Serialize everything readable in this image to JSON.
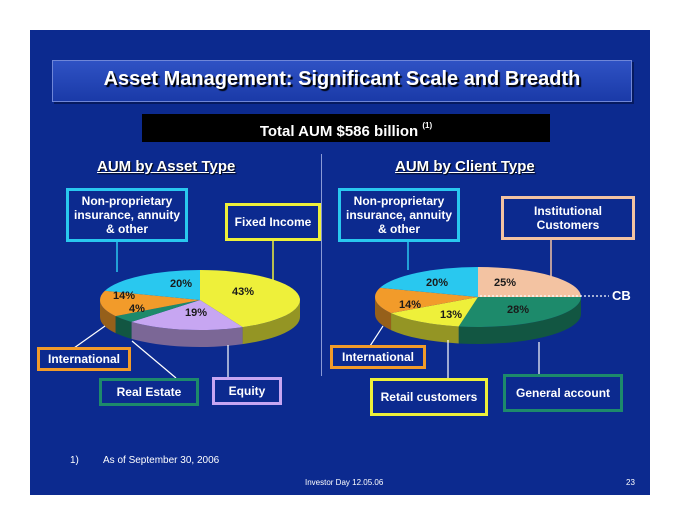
{
  "slide": {
    "title": "Asset Management: Significant Scale and Breadth",
    "total": "Total AUM $586 billion",
    "total_note": "(1)",
    "footnote_marker": "1)",
    "footnote_text": "As of September 30, 2006",
    "footer_center": "Investor Day 12.05.06",
    "page_number": "23"
  },
  "left": {
    "heading": "AUM by Asset Type",
    "labels": {
      "nonprop": "Non-proprietary insurance, annuity & other",
      "fixed": "Fixed Income",
      "international": "International",
      "real_estate": "Real Estate",
      "equity": "Equity"
    }
  },
  "right": {
    "heading": "AUM by Client Type",
    "labels": {
      "nonprop": "Non-proprietary insurance, annuity & other",
      "institutional": "Institutional Customers",
      "cb": "CB",
      "international": "International",
      "retail": "Retail customers",
      "general": "General account"
    }
  },
  "colors": {
    "background": "#0c2a8f",
    "cyan": "#29c8ef",
    "yellow": "#eef03a",
    "lavender": "#c7a6f2",
    "green": "#1d8a6b",
    "orange": "#f29b2a",
    "peach": "#f3c3a2"
  },
  "chart_data": [
    {
      "type": "pie",
      "title": "AUM by Asset Type",
      "slices": [
        {
          "label": "Fixed Income",
          "value": 43,
          "text": "43%",
          "color": "#eef03a"
        },
        {
          "label": "Equity",
          "value": 19,
          "text": "19%",
          "color": "#c7a6f2"
        },
        {
          "label": "Real Estate",
          "value": 4,
          "text": "4%",
          "color": "#1d8a6b"
        },
        {
          "label": "International",
          "value": 14,
          "text": "14%",
          "color": "#f29b2a"
        },
        {
          "label": "Non-proprietary insurance, annuity & other",
          "value": 20,
          "text": "20%",
          "color": "#29c8ef"
        }
      ]
    },
    {
      "type": "pie",
      "title": "AUM by Client Type",
      "slices": [
        {
          "label": "Institutional Customers",
          "value": 25,
          "text": "25%",
          "color": "#f3c3a2"
        },
        {
          "label": "General account",
          "value": 28,
          "text": "28%",
          "color": "#1d8a6b"
        },
        {
          "label": "Retail customers",
          "value": 13,
          "text": "13%",
          "color": "#eef03a"
        },
        {
          "label": "International",
          "value": 14,
          "text": "14%",
          "color": "#f29b2a"
        },
        {
          "label": "Non-proprietary insurance, annuity & other",
          "value": 20,
          "text": "20%",
          "color": "#29c8ef"
        }
      ]
    }
  ]
}
